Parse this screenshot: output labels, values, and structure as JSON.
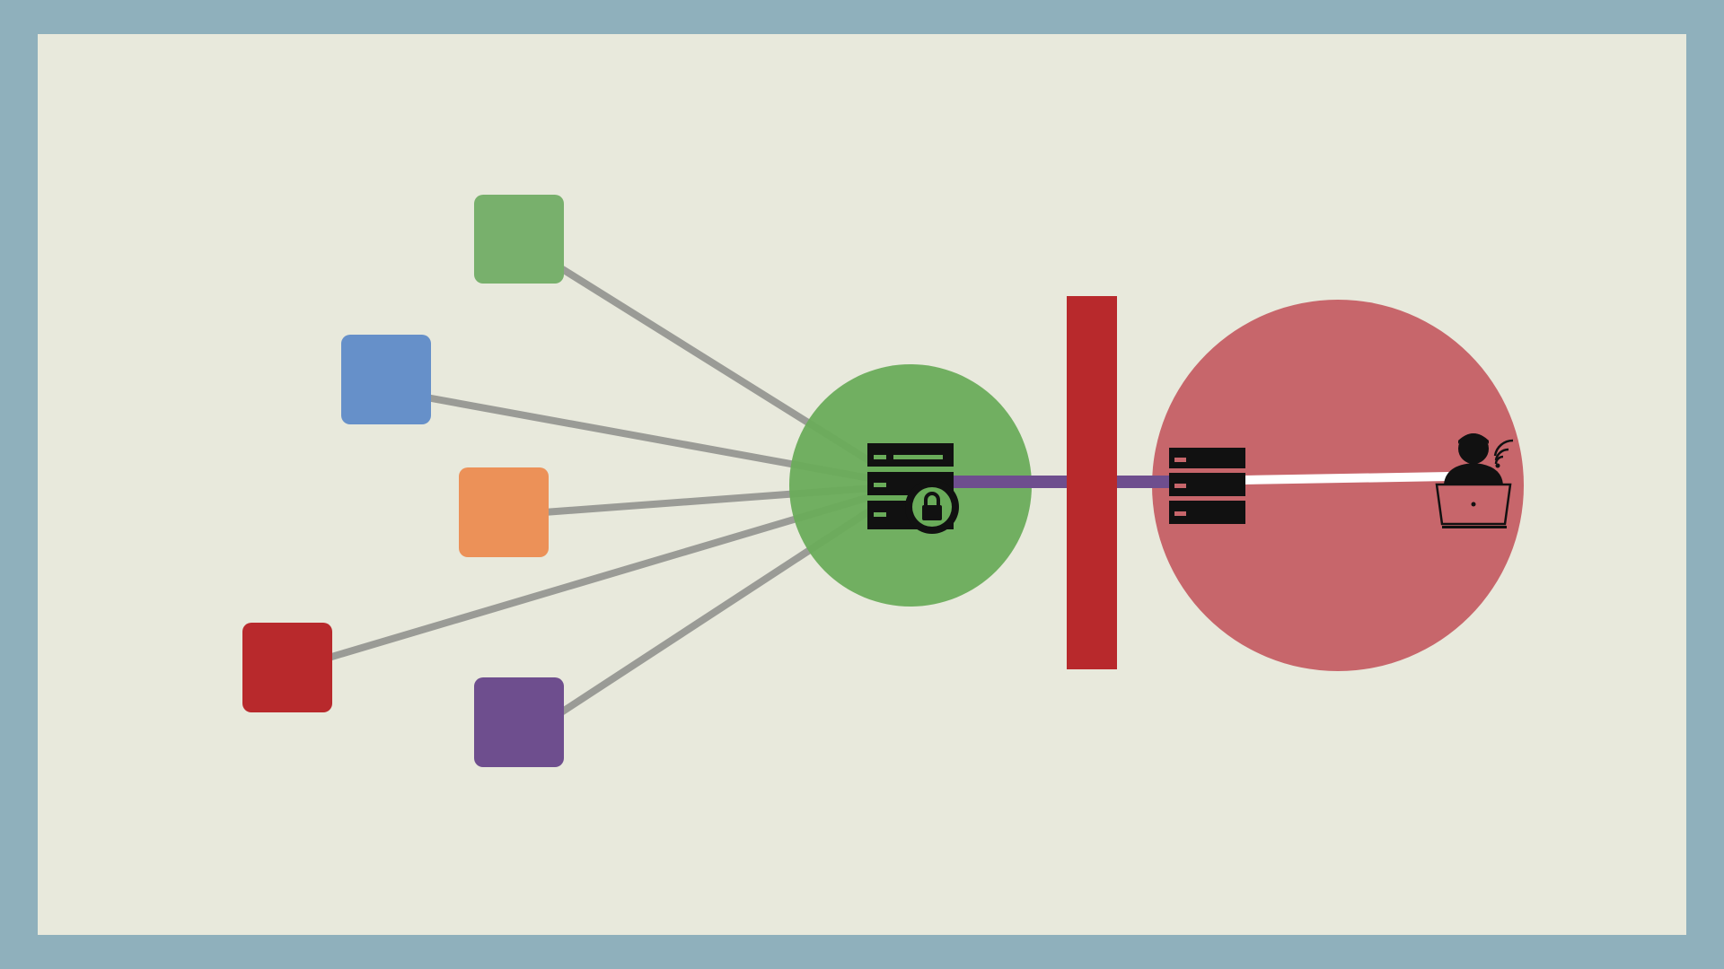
{
  "colors": {
    "frame": "#8fb0bc",
    "background": "#e8e9dc",
    "link": "#9a9b96",
    "node_green": "#78b06c",
    "node_blue": "#6690c9",
    "node_orange": "#ec9158",
    "node_red": "#b8292c",
    "node_purple": "#6e4e8e",
    "secure_zone": "#6aac5a",
    "firewall": "#b8292c",
    "threat_zone": "#c7666b",
    "tunnel": "#6e4e8e",
    "attacker_link": "#ffffff",
    "icon": "#111111"
  },
  "nodes": [
    {
      "id": "green-node",
      "color_key": "node_green"
    },
    {
      "id": "blue-node",
      "color_key": "node_blue"
    },
    {
      "id": "orange-node",
      "color_key": "node_orange"
    },
    {
      "id": "red-node",
      "color_key": "node_red"
    },
    {
      "id": "purple-node",
      "color_key": "node_purple"
    }
  ],
  "icons": {
    "secure_server": "server-lock-icon",
    "remote_server": "server-icon",
    "attacker": "user-laptop-wifi-icon"
  }
}
